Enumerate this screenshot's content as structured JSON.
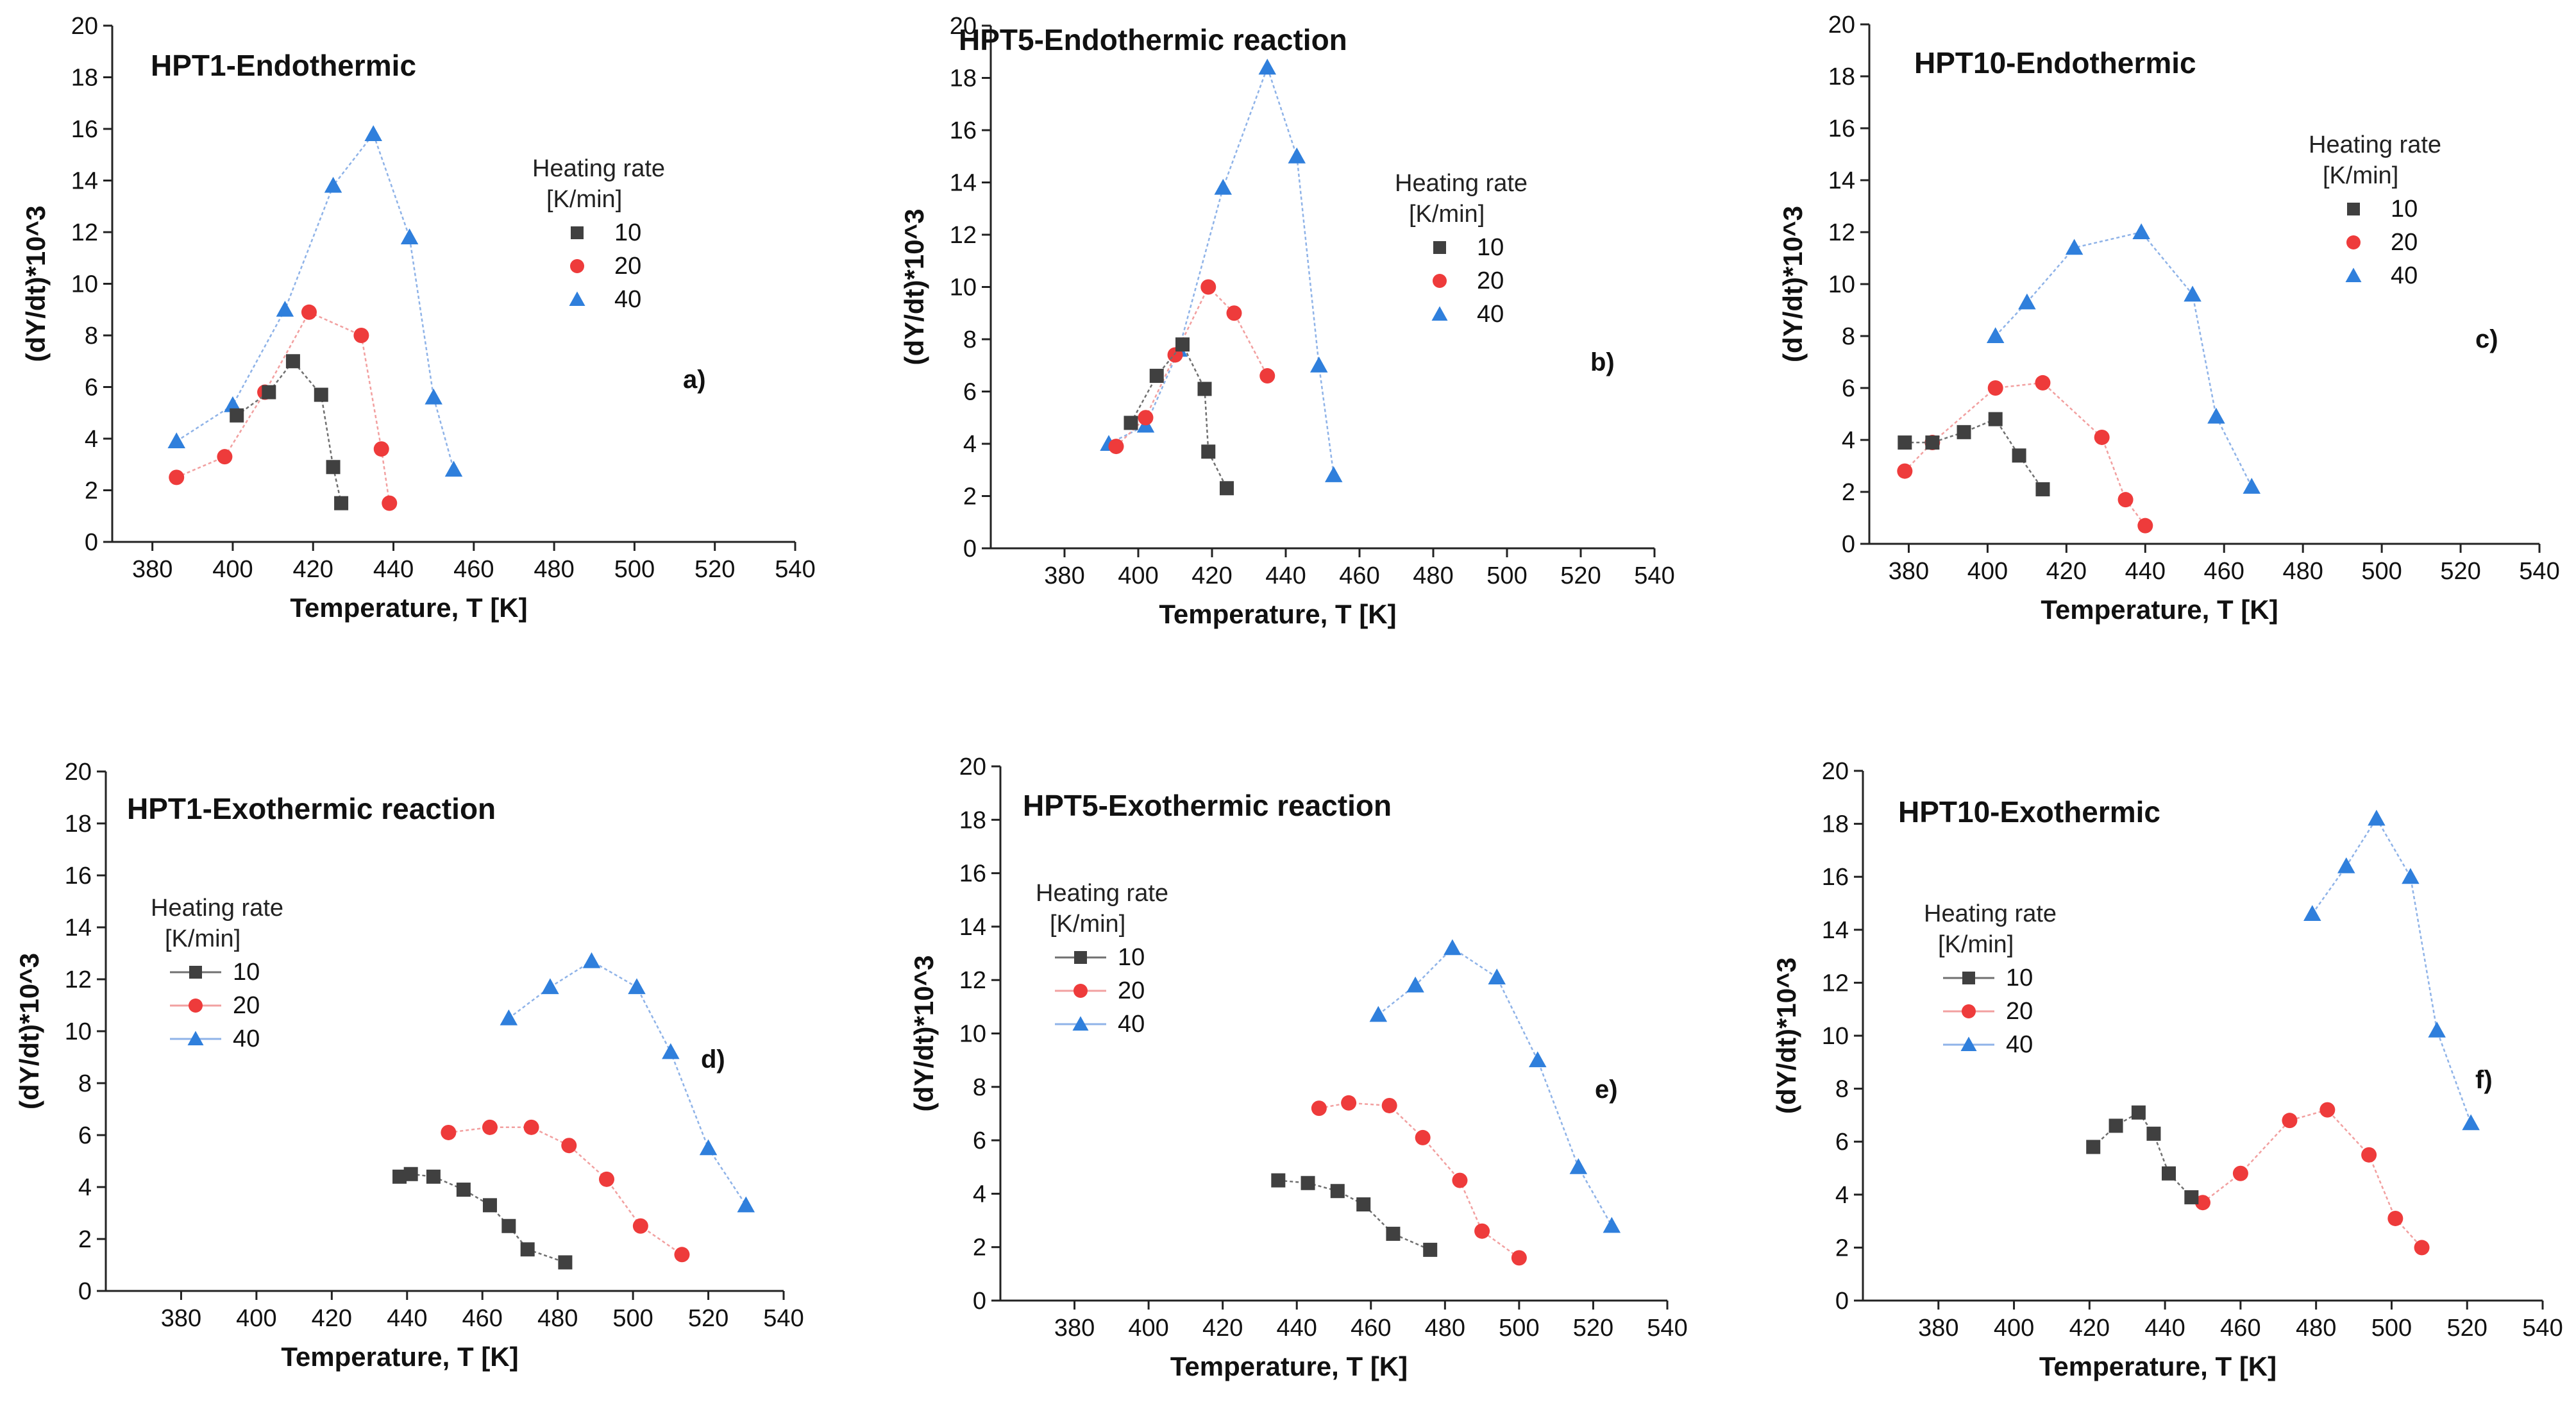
{
  "colors": {
    "s10": "#404040",
    "s20": "#ee3b3b",
    "s40": "#2f7fdc",
    "line40": "#8fb3e8",
    "line20": "#f2a0a0",
    "line10": "#707070"
  },
  "chart_data": [
    {
      "type": "line",
      "title": "HPT1-Endothermic",
      "panel": "a)",
      "xlabel": "Temperature, T [K]",
      "ylabel": "(dY/dt)*10^3",
      "xlim": [
        370,
        540
      ],
      "ylim": [
        0,
        20
      ],
      "xticks": [
        380,
        400,
        420,
        440,
        460,
        480,
        500,
        520,
        540
      ],
      "yticks": [
        0,
        2,
        4,
        6,
        8,
        10,
        12,
        14,
        16,
        18,
        20
      ],
      "legend_title": [
        "Heating rate",
        "[K/min]"
      ],
      "legend_position": "right",
      "series": [
        {
          "name": "10",
          "marker": "square",
          "x": [
            401,
            409,
            415,
            422,
            425,
            427
          ],
          "y": [
            4.9,
            5.8,
            7.0,
            5.7,
            2.9,
            1.5
          ]
        },
        {
          "name": "20",
          "marker": "circle",
          "x": [
            386,
            398,
            408,
            419,
            432,
            437,
            439
          ],
          "y": [
            2.5,
            3.3,
            5.8,
            8.9,
            8.0,
            3.6,
            1.5
          ]
        },
        {
          "name": "40",
          "marker": "triangle",
          "x": [
            386,
            400,
            413,
            425,
            435,
            444,
            450,
            455
          ],
          "y": [
            3.9,
            5.3,
            9.0,
            13.8,
            15.8,
            11.8,
            5.6,
            2.8
          ]
        }
      ]
    },
    {
      "type": "line",
      "title": "HPT5-Endothermic reaction",
      "panel": "b)",
      "xlabel": "Temperature, T [K]",
      "ylabel": "(dY/dt)*10^3",
      "xlim": [
        360,
        540
      ],
      "ylim": [
        0,
        20
      ],
      "xticks": [
        380,
        400,
        420,
        440,
        460,
        480,
        500,
        520,
        540
      ],
      "yticks": [
        0,
        2,
        4,
        6,
        8,
        10,
        12,
        14,
        16,
        18,
        20
      ],
      "legend_title": [
        "Heating rate",
        "[K/min]"
      ],
      "legend_position": "right",
      "series": [
        {
          "name": "10",
          "marker": "square",
          "x": [
            398,
            405,
            412,
            418,
            419,
            424
          ],
          "y": [
            4.8,
            6.6,
            7.8,
            6.1,
            3.7,
            2.3
          ]
        },
        {
          "name": "20",
          "marker": "circle",
          "x": [
            394,
            402,
            410,
            419,
            426,
            435
          ],
          "y": [
            3.9,
            5.0,
            7.4,
            10.0,
            9.0,
            6.6
          ]
        },
        {
          "name": "40",
          "marker": "triangle",
          "x": [
            392,
            402,
            411,
            423,
            435,
            443,
            449,
            453
          ],
          "y": [
            4.0,
            4.7,
            7.6,
            13.8,
            18.4,
            15.0,
            7.0,
            2.8
          ]
        }
      ]
    },
    {
      "type": "line",
      "title": "HPT10-Endothermic",
      "panel": "c)",
      "xlabel": "Temperature, T [K]",
      "ylabel": "(dY/dt)*10^3",
      "xlim": [
        370,
        540
      ],
      "ylim": [
        0,
        20
      ],
      "xticks": [
        380,
        400,
        420,
        440,
        460,
        480,
        500,
        520,
        540
      ],
      "yticks": [
        0,
        2,
        4,
        6,
        8,
        10,
        12,
        14,
        16,
        18,
        20
      ],
      "legend_title": [
        "Heating rate",
        "[K/min]"
      ],
      "legend_position": "top-right",
      "series": [
        {
          "name": "10",
          "marker": "square",
          "x": [
            379,
            386,
            394,
            402,
            408,
            414
          ],
          "y": [
            3.9,
            3.9,
            4.3,
            4.8,
            3.4,
            2.1
          ]
        },
        {
          "name": "20",
          "marker": "circle",
          "x": [
            379,
            386,
            402,
            414,
            429,
            435,
            440
          ],
          "y": [
            2.8,
            3.9,
            6.0,
            6.2,
            4.1,
            1.7,
            0.7
          ]
        },
        {
          "name": "40",
          "marker": "triangle",
          "x": [
            402,
            410,
            422,
            439,
            452,
            458,
            467
          ],
          "y": [
            8.0,
            9.3,
            11.4,
            12.0,
            9.6,
            4.9,
            2.2
          ]
        }
      ]
    },
    {
      "type": "line",
      "title": "HPT1-Exothermic reaction",
      "panel": "d)",
      "xlabel": "Temperature, T [K]",
      "ylabel": "(dY/dt)*10^3",
      "xlim": [
        360,
        540
      ],
      "ylim": [
        0,
        20
      ],
      "xticks": [
        380,
        400,
        420,
        440,
        460,
        480,
        500,
        520,
        540
      ],
      "yticks": [
        0,
        2,
        4,
        6,
        8,
        10,
        12,
        14,
        16,
        18,
        20
      ],
      "legend_title": [
        "Heating rate",
        "[K/min]"
      ],
      "legend_position": "left",
      "series": [
        {
          "name": "10",
          "marker": "square",
          "x": [
            438,
            441,
            447,
            455,
            462,
            467,
            472,
            482
          ],
          "y": [
            4.4,
            4.5,
            4.4,
            3.9,
            3.3,
            2.5,
            1.6,
            1.1
          ]
        },
        {
          "name": "20",
          "marker": "circle",
          "x": [
            451,
            462,
            473,
            483,
            493,
            502,
            513
          ],
          "y": [
            6.1,
            6.3,
            6.3,
            5.6,
            4.3,
            2.5,
            1.4
          ]
        },
        {
          "name": "40",
          "marker": "triangle",
          "x": [
            467,
            478,
            489,
            501,
            510,
            520,
            530
          ],
          "y": [
            10.5,
            11.7,
            12.7,
            11.7,
            9.2,
            5.5,
            3.3
          ]
        }
      ]
    },
    {
      "type": "line",
      "title": "HPT5-Exothermic reaction",
      "panel": "e)",
      "xlabel": "Temperature, T [K]",
      "ylabel": "(dY/dt)*10^3",
      "xlim": [
        360,
        540
      ],
      "ylim": [
        0,
        20
      ],
      "xticks": [
        380,
        400,
        420,
        440,
        460,
        480,
        500,
        520,
        540
      ],
      "yticks": [
        0,
        2,
        4,
        6,
        8,
        10,
        12,
        14,
        16,
        18,
        20
      ],
      "legend_title": [
        "Heating rate",
        "[K/min]"
      ],
      "legend_position": "left",
      "series": [
        {
          "name": "10",
          "marker": "square",
          "x": [
            435,
            443,
            451,
            458,
            466,
            476
          ],
          "y": [
            4.5,
            4.4,
            4.1,
            3.6,
            2.5,
            1.9
          ]
        },
        {
          "name": "20",
          "marker": "circle",
          "x": [
            446,
            454,
            465,
            474,
            484,
            490,
            500
          ],
          "y": [
            7.2,
            7.4,
            7.3,
            6.1,
            4.5,
            2.6,
            1.6
          ]
        },
        {
          "name": "40",
          "marker": "triangle",
          "x": [
            462,
            472,
            482,
            494,
            505,
            516,
            525
          ],
          "y": [
            10.7,
            11.8,
            13.2,
            12.1,
            9.0,
            5.0,
            2.8
          ]
        }
      ]
    },
    {
      "type": "line",
      "title": "HPT10-Exothermic",
      "panel": "f)",
      "xlabel": "Temperature, T [K]",
      "ylabel": "(dY/dt)*10^3",
      "xlim": [
        360,
        540
      ],
      "ylim": [
        0,
        20
      ],
      "xticks": [
        380,
        400,
        420,
        440,
        460,
        480,
        500,
        520,
        540
      ],
      "yticks": [
        0,
        2,
        4,
        6,
        8,
        10,
        12,
        14,
        16,
        18,
        20
      ],
      "legend_title": [
        "Heating rate",
        "[K/min]"
      ],
      "legend_position": "left",
      "series": [
        {
          "name": "10",
          "marker": "square",
          "x": [
            421,
            427,
            433,
            437,
            441,
            447
          ],
          "y": [
            5.8,
            6.6,
            7.1,
            6.3,
            4.8,
            3.9
          ]
        },
        {
          "name": "20",
          "marker": "circle",
          "x": [
            450,
            460,
            473,
            483,
            494,
            501,
            508
          ],
          "y": [
            3.7,
            4.8,
            6.8,
            7.2,
            5.5,
            3.1,
            2.0
          ]
        },
        {
          "name": "40",
          "marker": "triangle",
          "x": [
            479,
            488,
            496,
            505,
            512,
            521
          ],
          "y": [
            14.6,
            16.4,
            18.2,
            16.0,
            10.2,
            6.7
          ]
        }
      ]
    }
  ]
}
